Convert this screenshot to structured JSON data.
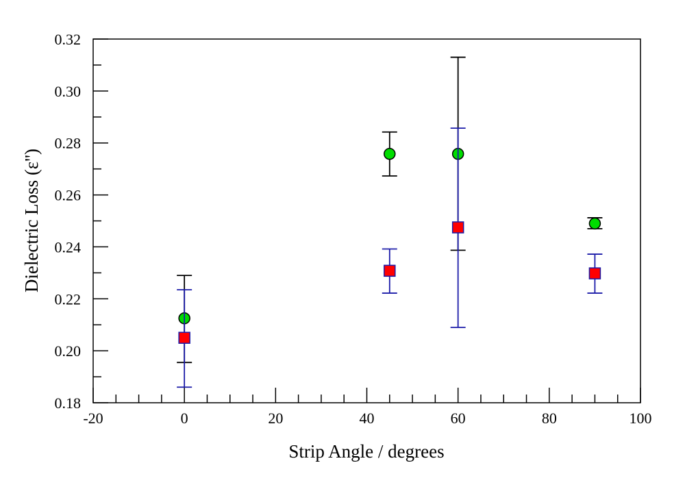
{
  "chart_data": {
    "type": "scatter",
    "title": "",
    "xlabel": "Strip Angle / degrees",
    "ylabel": "Dielectric Loss (ε'')",
    "xlim": [
      -20,
      100
    ],
    "ylim": [
      0.18,
      0.32
    ],
    "x_major_ticks": [
      -20,
      0,
      20,
      40,
      60,
      80,
      100
    ],
    "x_tick_labels": [
      "-20",
      "0",
      "20",
      "40",
      "60",
      "80",
      "100"
    ],
    "x_minor_step": 5,
    "y_major_ticks": [
      0.18,
      0.2,
      0.22,
      0.24,
      0.26,
      0.28,
      0.3,
      0.32
    ],
    "y_tick_labels": [
      "0.18",
      "0.20",
      "0.22",
      "0.24",
      "0.26",
      "0.28",
      "0.30",
      "0.32"
    ],
    "y_minor_step": 0.01,
    "grid": false,
    "legend": null,
    "series": [
      {
        "name": "green circles",
        "marker": "circle",
        "color": "#00dd00",
        "errorbar_color": "#000000",
        "points": [
          {
            "x": 0,
            "y": 0.2125,
            "err_low": 0.1955,
            "err_high": 0.229
          },
          {
            "x": 45,
            "y": 0.2758,
            "err_low": 0.2673,
            "err_high": 0.2842
          },
          {
            "x": 60,
            "y": 0.2758,
            "err_low": 0.2387,
            "err_high": 0.313
          },
          {
            "x": 90,
            "y": 0.249,
            "err_low": 0.247,
            "err_high": 0.2512
          }
        ]
      },
      {
        "name": "red squares",
        "marker": "square",
        "color": "#ff0000",
        "errorbar_color": "#1a1aa8",
        "points": [
          {
            "x": 0,
            "y": 0.205,
            "err_low": 0.186,
            "err_high": 0.2235
          },
          {
            "x": 45,
            "y": 0.2308,
            "err_low": 0.2222,
            "err_high": 0.2392
          },
          {
            "x": 60,
            "y": 0.2475,
            "err_low": 0.209,
            "err_high": 0.2857
          },
          {
            "x": 90,
            "y": 0.2298,
            "err_low": 0.2222,
            "err_high": 0.2372
          }
        ]
      }
    ]
  }
}
